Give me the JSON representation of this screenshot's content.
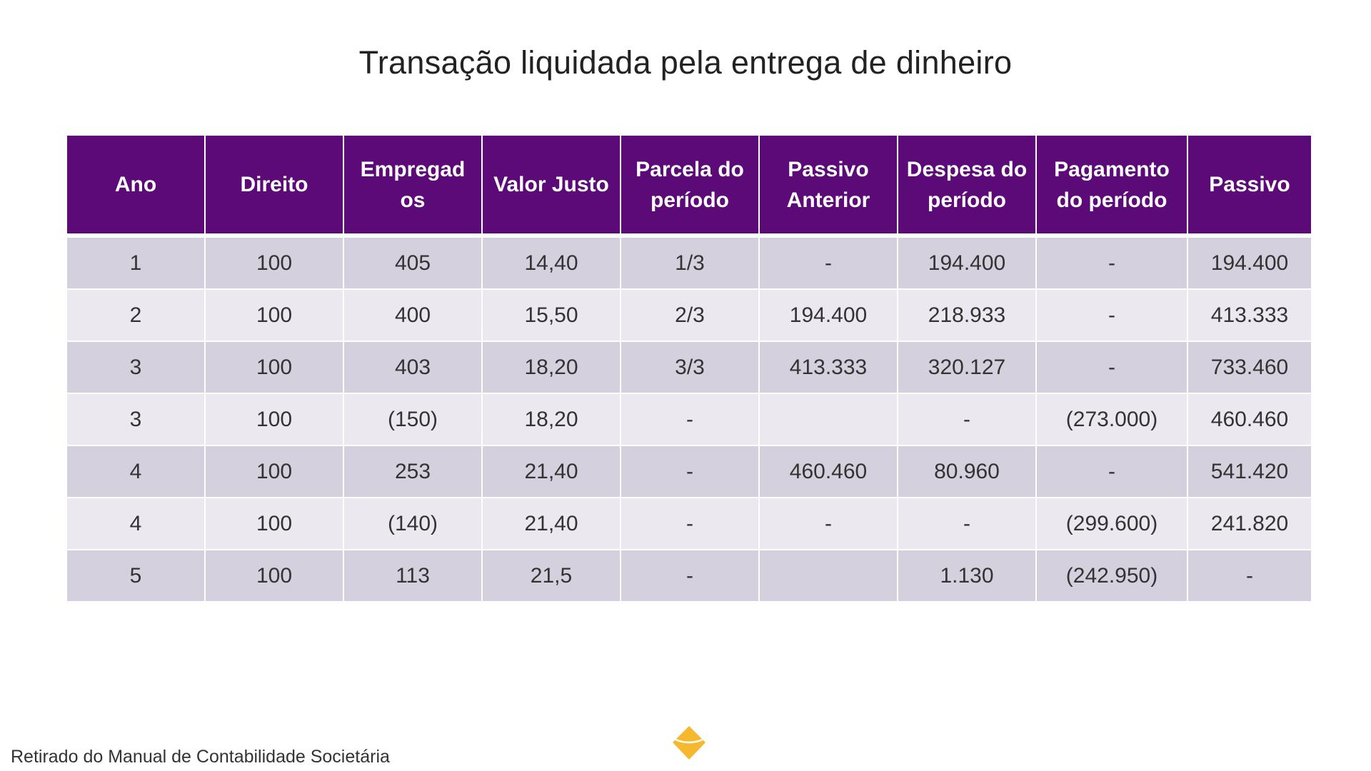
{
  "title": "Transação liquidada pela entrega de dinheiro",
  "table": {
    "headers": [
      "Ano",
      "Direito",
      "Empregad os",
      "Valor Justo",
      "Parcela do período",
      "Passivo Anterior",
      "Despesa do período",
      "Pagamento do período",
      "Passivo"
    ],
    "rows": [
      [
        "1",
        "100",
        "405",
        "14,40",
        "1/3",
        "-",
        "194.400",
        "-",
        "194.400"
      ],
      [
        "2",
        "100",
        "400",
        "15,50",
        "2/3",
        "194.400",
        "218.933",
        "-",
        "413.333"
      ],
      [
        "3",
        "100",
        "403",
        "18,20",
        "3/3",
        "413.333",
        "320.127",
        "-",
        "733.460"
      ],
      [
        "3",
        "100",
        "(150)",
        "18,20",
        "-",
        "",
        "-",
        "(273.000)",
        "460.460"
      ],
      [
        "4",
        "100",
        "253",
        "21,40",
        "-",
        "460.460",
        "80.960",
        "-",
        "541.420"
      ],
      [
        "4",
        "100",
        "(140)",
        "21,40",
        "-",
        "-",
        "-",
        "(299.600)",
        "241.820"
      ],
      [
        "5",
        "100",
        "113",
        "21,5",
        "-",
        "",
        "1.130",
        "(242.950)",
        "-"
      ]
    ]
  },
  "footer": {
    "source": "Retirado do Manual de Contabilidade Societária"
  },
  "logo": {
    "icon": "yellow-diamond-logo",
    "color": "#f5b82e"
  },
  "colors": {
    "header_bg": "#5b0a78",
    "row_dark": "#d5d0dd",
    "row_light": "#ebe8ef"
  }
}
